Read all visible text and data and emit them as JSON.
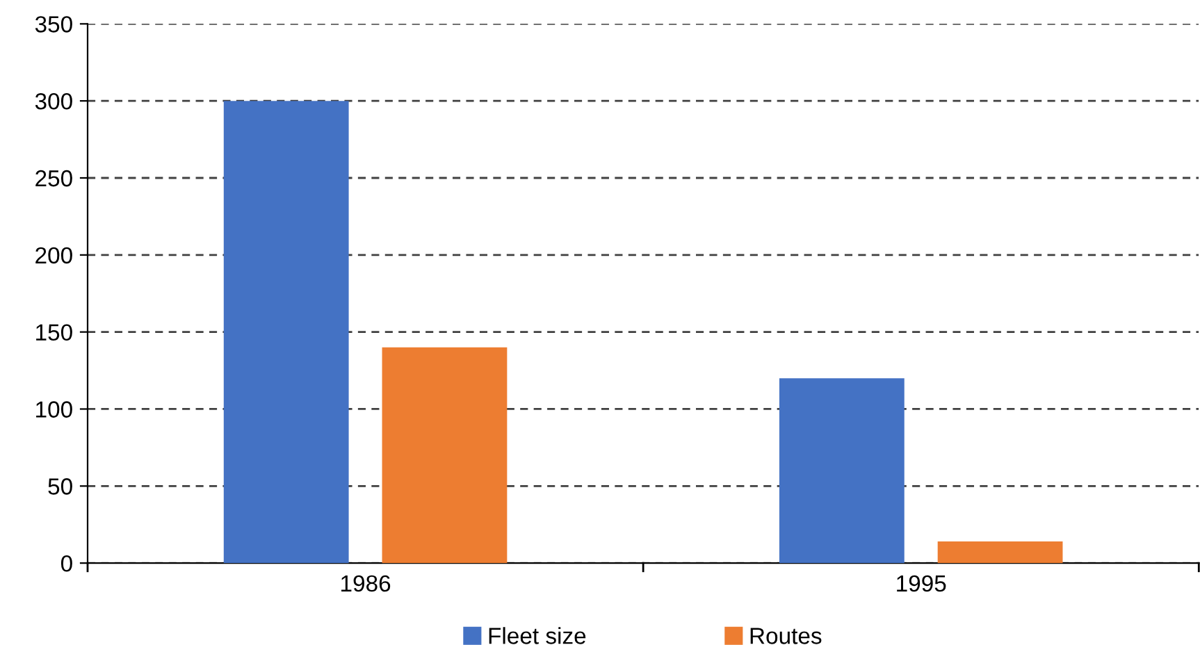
{
  "chart_data": {
    "type": "bar",
    "categories": [
      "1986",
      "1995"
    ],
    "series": [
      {
        "name": "Fleet size",
        "color": "#4472c4",
        "values": [
          300,
          120
        ]
      },
      {
        "name": "Routes",
        "color": "#ed7d31",
        "values": [
          140,
          14
        ]
      }
    ],
    "ylim": [
      0,
      350
    ],
    "yticks": [
      0,
      50,
      100,
      150,
      200,
      250,
      300,
      350
    ],
    "grid": "y",
    "legend": "bottom"
  }
}
